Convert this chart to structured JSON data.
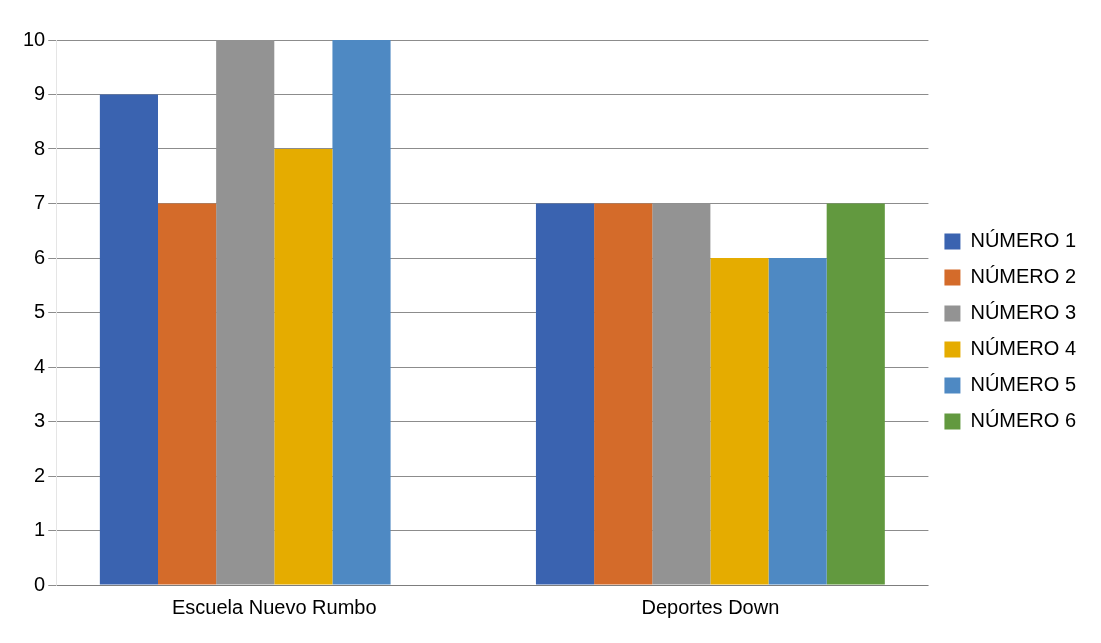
{
  "chart_data": {
    "type": "bar",
    "categories": [
      "Escuela Nuevo Rumbo",
      "Deportes Down"
    ],
    "series": [
      {
        "name": "NÚMERO 1",
        "color": "#3a63b0",
        "values": [
          9,
          7
        ]
      },
      {
        "name": "NÚMERO 2",
        "color": "#d46b2a",
        "values": [
          7,
          7
        ]
      },
      {
        "name": "NÚMERO 3",
        "color": "#939393",
        "values": [
          10,
          7
        ]
      },
      {
        "name": "NÚMERO 4",
        "color": "#e5ac00",
        "values": [
          8,
          6
        ]
      },
      {
        "name": "NÚMERO 5",
        "color": "#4e89c3",
        "values": [
          10,
          6
        ]
      },
      {
        "name": "NÚMERO 6",
        "color": "#62993f",
        "values": [
          null,
          7
        ]
      }
    ],
    "ylim": [
      0,
      10
    ],
    "yticks": [
      0,
      1,
      2,
      3,
      4,
      5,
      6,
      7,
      8,
      9,
      10
    ],
    "grid": "y",
    "legend": "right"
  }
}
